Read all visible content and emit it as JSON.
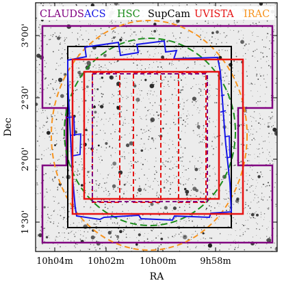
{
  "figure": {
    "xlabel": "RA",
    "ylabel": "Dec",
    "xticks": [
      "10h04m",
      "10h02m",
      "10h00m",
      "9h58m"
    ],
    "yticks": [
      "3°00'",
      "2°30'",
      "2°00'",
      "1°30'"
    ]
  },
  "legend": [
    {
      "label": "CLAUDS",
      "color": "#800080"
    },
    {
      "label": "ACS",
      "color": "#1515e6"
    },
    {
      "label": "HSC",
      "color": "#1a8c1a"
    },
    {
      "label": "SupCam",
      "color": "#000000"
    },
    {
      "label": "UVISTA",
      "color": "#e61212"
    },
    {
      "label": "IRAC",
      "color": "#f7931e"
    }
  ],
  "colors": {
    "background_sky": "#ececec",
    "stars": "#111111",
    "frame": "#000000"
  },
  "survey_style": {
    "CLAUDS": "solid outer cross footprint",
    "ACS": "solid tiled footprint",
    "HSC": "dashed circle",
    "SupCam": "solid square",
    "UVISTA": "solid square plus dashed ultra-deep strips",
    "IRAC": "dashed ellipse"
  }
}
